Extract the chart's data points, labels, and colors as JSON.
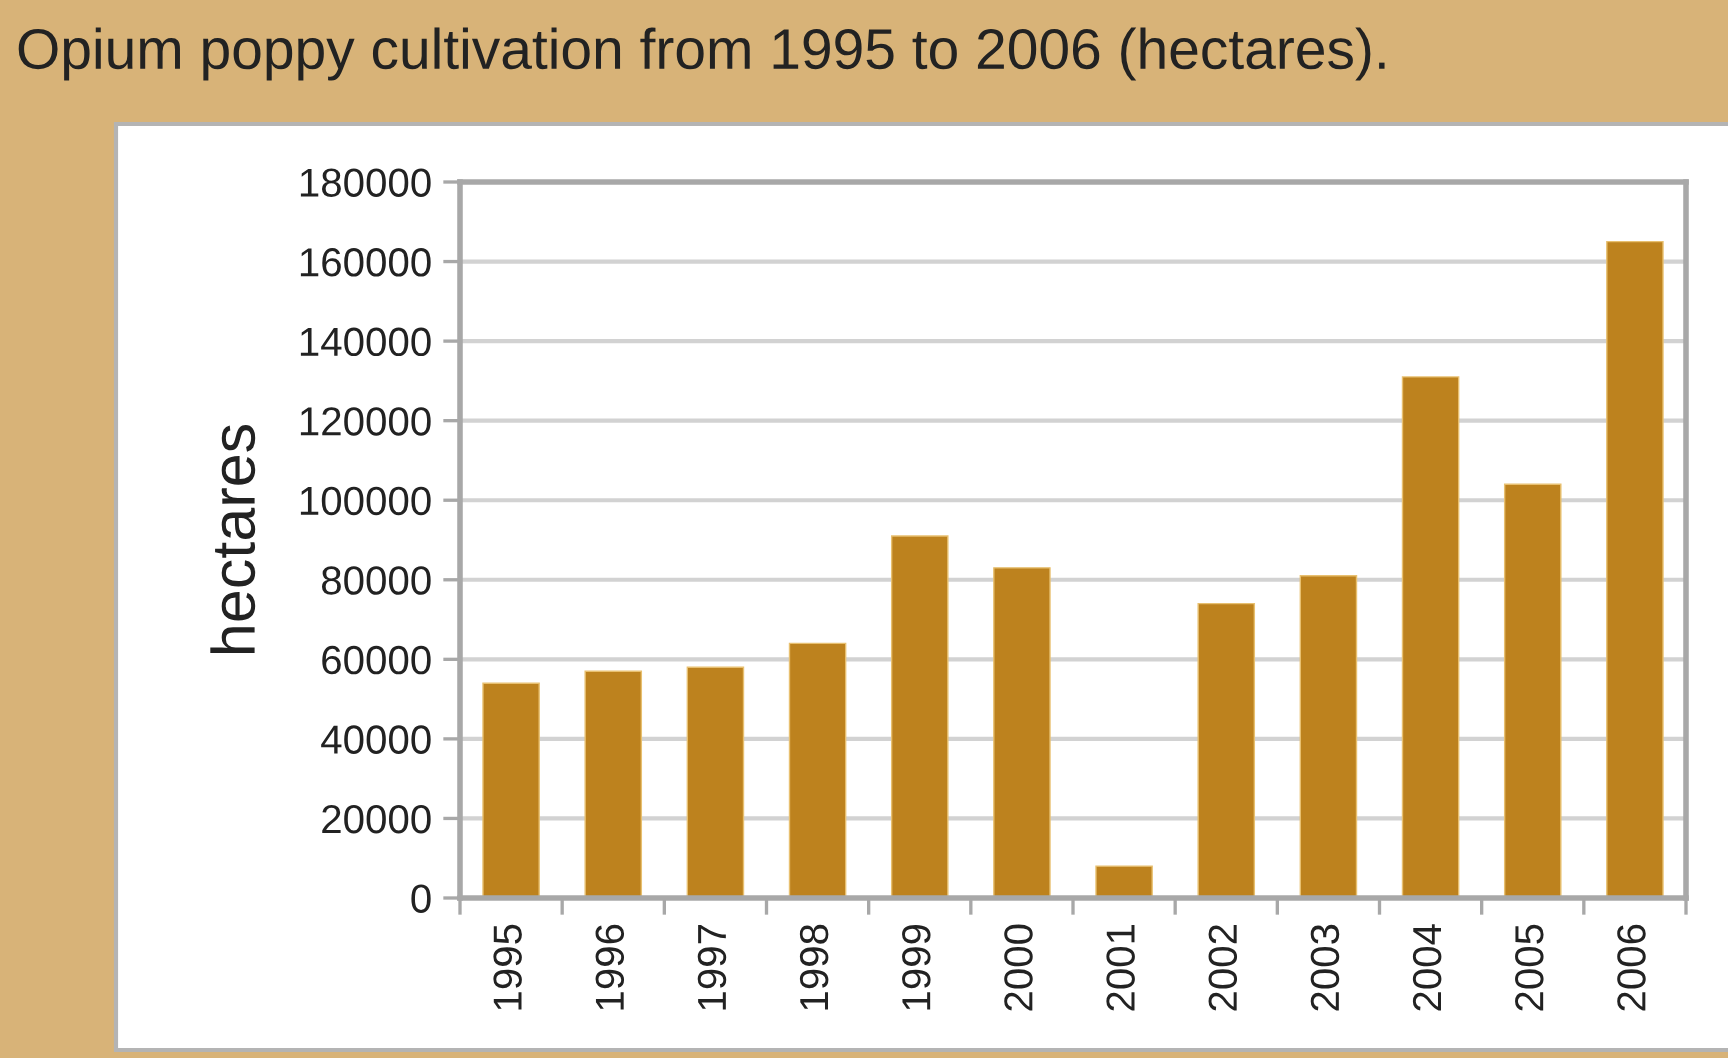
{
  "chart_data": {
    "type": "bar",
    "title": "Opium poppy cultivation from 1995 to 2006 (hectares).",
    "ylabel": "hectares",
    "categories": [
      "1995",
      "1996",
      "1997",
      "1998",
      "1999",
      "2000",
      "2001",
      "2002",
      "2003",
      "2004",
      "2005",
      "2006"
    ],
    "values": [
      54000,
      57000,
      58000,
      64000,
      91000,
      83000,
      8000,
      74000,
      81000,
      131000,
      104000,
      165000
    ],
    "color": "#bd821e",
    "ylim": [
      0,
      180000
    ],
    "yticks": [
      0,
      20000,
      40000,
      60000,
      80000,
      100000,
      120000,
      140000,
      160000,
      180000
    ],
    "grid": "y"
  }
}
